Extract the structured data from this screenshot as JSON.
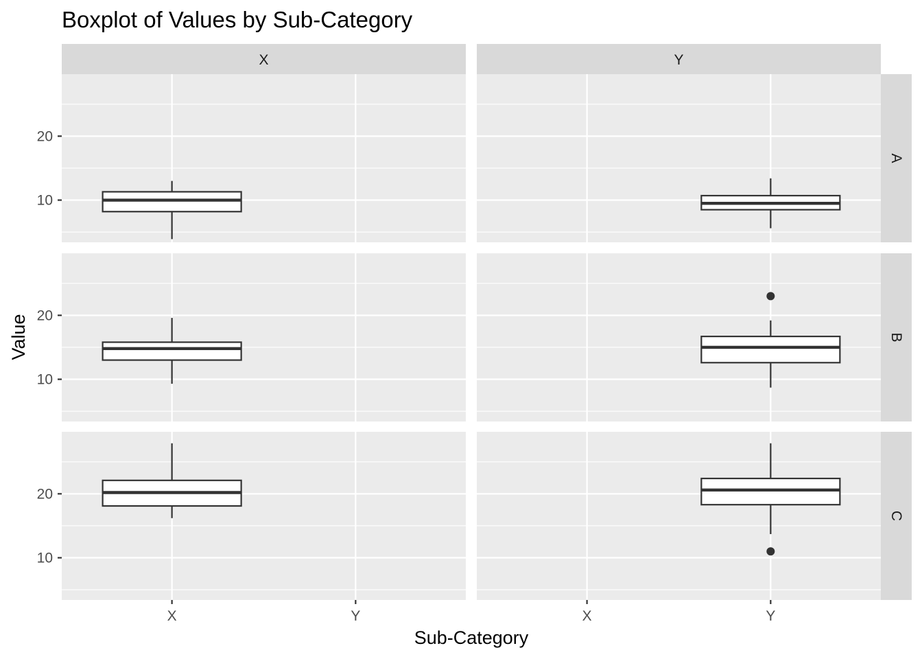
{
  "chart_data": {
    "type": "boxplot",
    "title": "Boxplot of Values by Sub-Category",
    "xlabel": "Sub-Category",
    "ylabel": "Value",
    "x_categories": [
      "X",
      "Y"
    ],
    "column_facets": [
      "X",
      "Y"
    ],
    "row_facets": [
      "A",
      "B",
      "C"
    ],
    "y_range": [
      3.4,
      29.7
    ],
    "y_ticks": [
      10,
      20
    ],
    "grid": true,
    "panels": [
      {
        "col": "X",
        "row": "A",
        "boxes": [
          {
            "x": "X",
            "whisker_low": 3.9,
            "q1": 8.2,
            "median": 10.0,
            "q3": 11.3,
            "whisker_high": 13.0,
            "outliers": []
          }
        ]
      },
      {
        "col": "Y",
        "row": "A",
        "boxes": [
          {
            "x": "Y",
            "whisker_low": 5.6,
            "q1": 8.5,
            "median": 9.5,
            "q3": 10.7,
            "whisker_high": 13.4,
            "outliers": []
          }
        ]
      },
      {
        "col": "X",
        "row": "B",
        "boxes": [
          {
            "x": "X",
            "whisker_low": 9.3,
            "q1": 13.0,
            "median": 14.8,
            "q3": 15.8,
            "whisker_high": 19.6,
            "outliers": []
          }
        ]
      },
      {
        "col": "Y",
        "row": "B",
        "boxes": [
          {
            "x": "Y",
            "whisker_low": 8.7,
            "q1": 12.6,
            "median": 15.0,
            "q3": 16.7,
            "whisker_high": 19.2,
            "outliers": [
              23.0
            ]
          }
        ]
      },
      {
        "col": "X",
        "row": "C",
        "boxes": [
          {
            "x": "X",
            "whisker_low": 16.2,
            "q1": 18.1,
            "median": 20.2,
            "q3": 22.1,
            "whisker_high": 27.9,
            "outliers": []
          }
        ]
      },
      {
        "col": "Y",
        "row": "C",
        "boxes": [
          {
            "x": "Y",
            "whisker_low": 13.7,
            "q1": 18.3,
            "median": 20.6,
            "q3": 22.4,
            "whisker_high": 27.9,
            "outliers": [
              11.0
            ]
          }
        ]
      }
    ]
  },
  "colors": {
    "panel_background": "#ebebeb",
    "grid_major": "#ffffff",
    "strip_background": "#d9d9d9",
    "box_stroke": "#333333",
    "box_fill": "#ffffff",
    "tick": "#333333"
  }
}
